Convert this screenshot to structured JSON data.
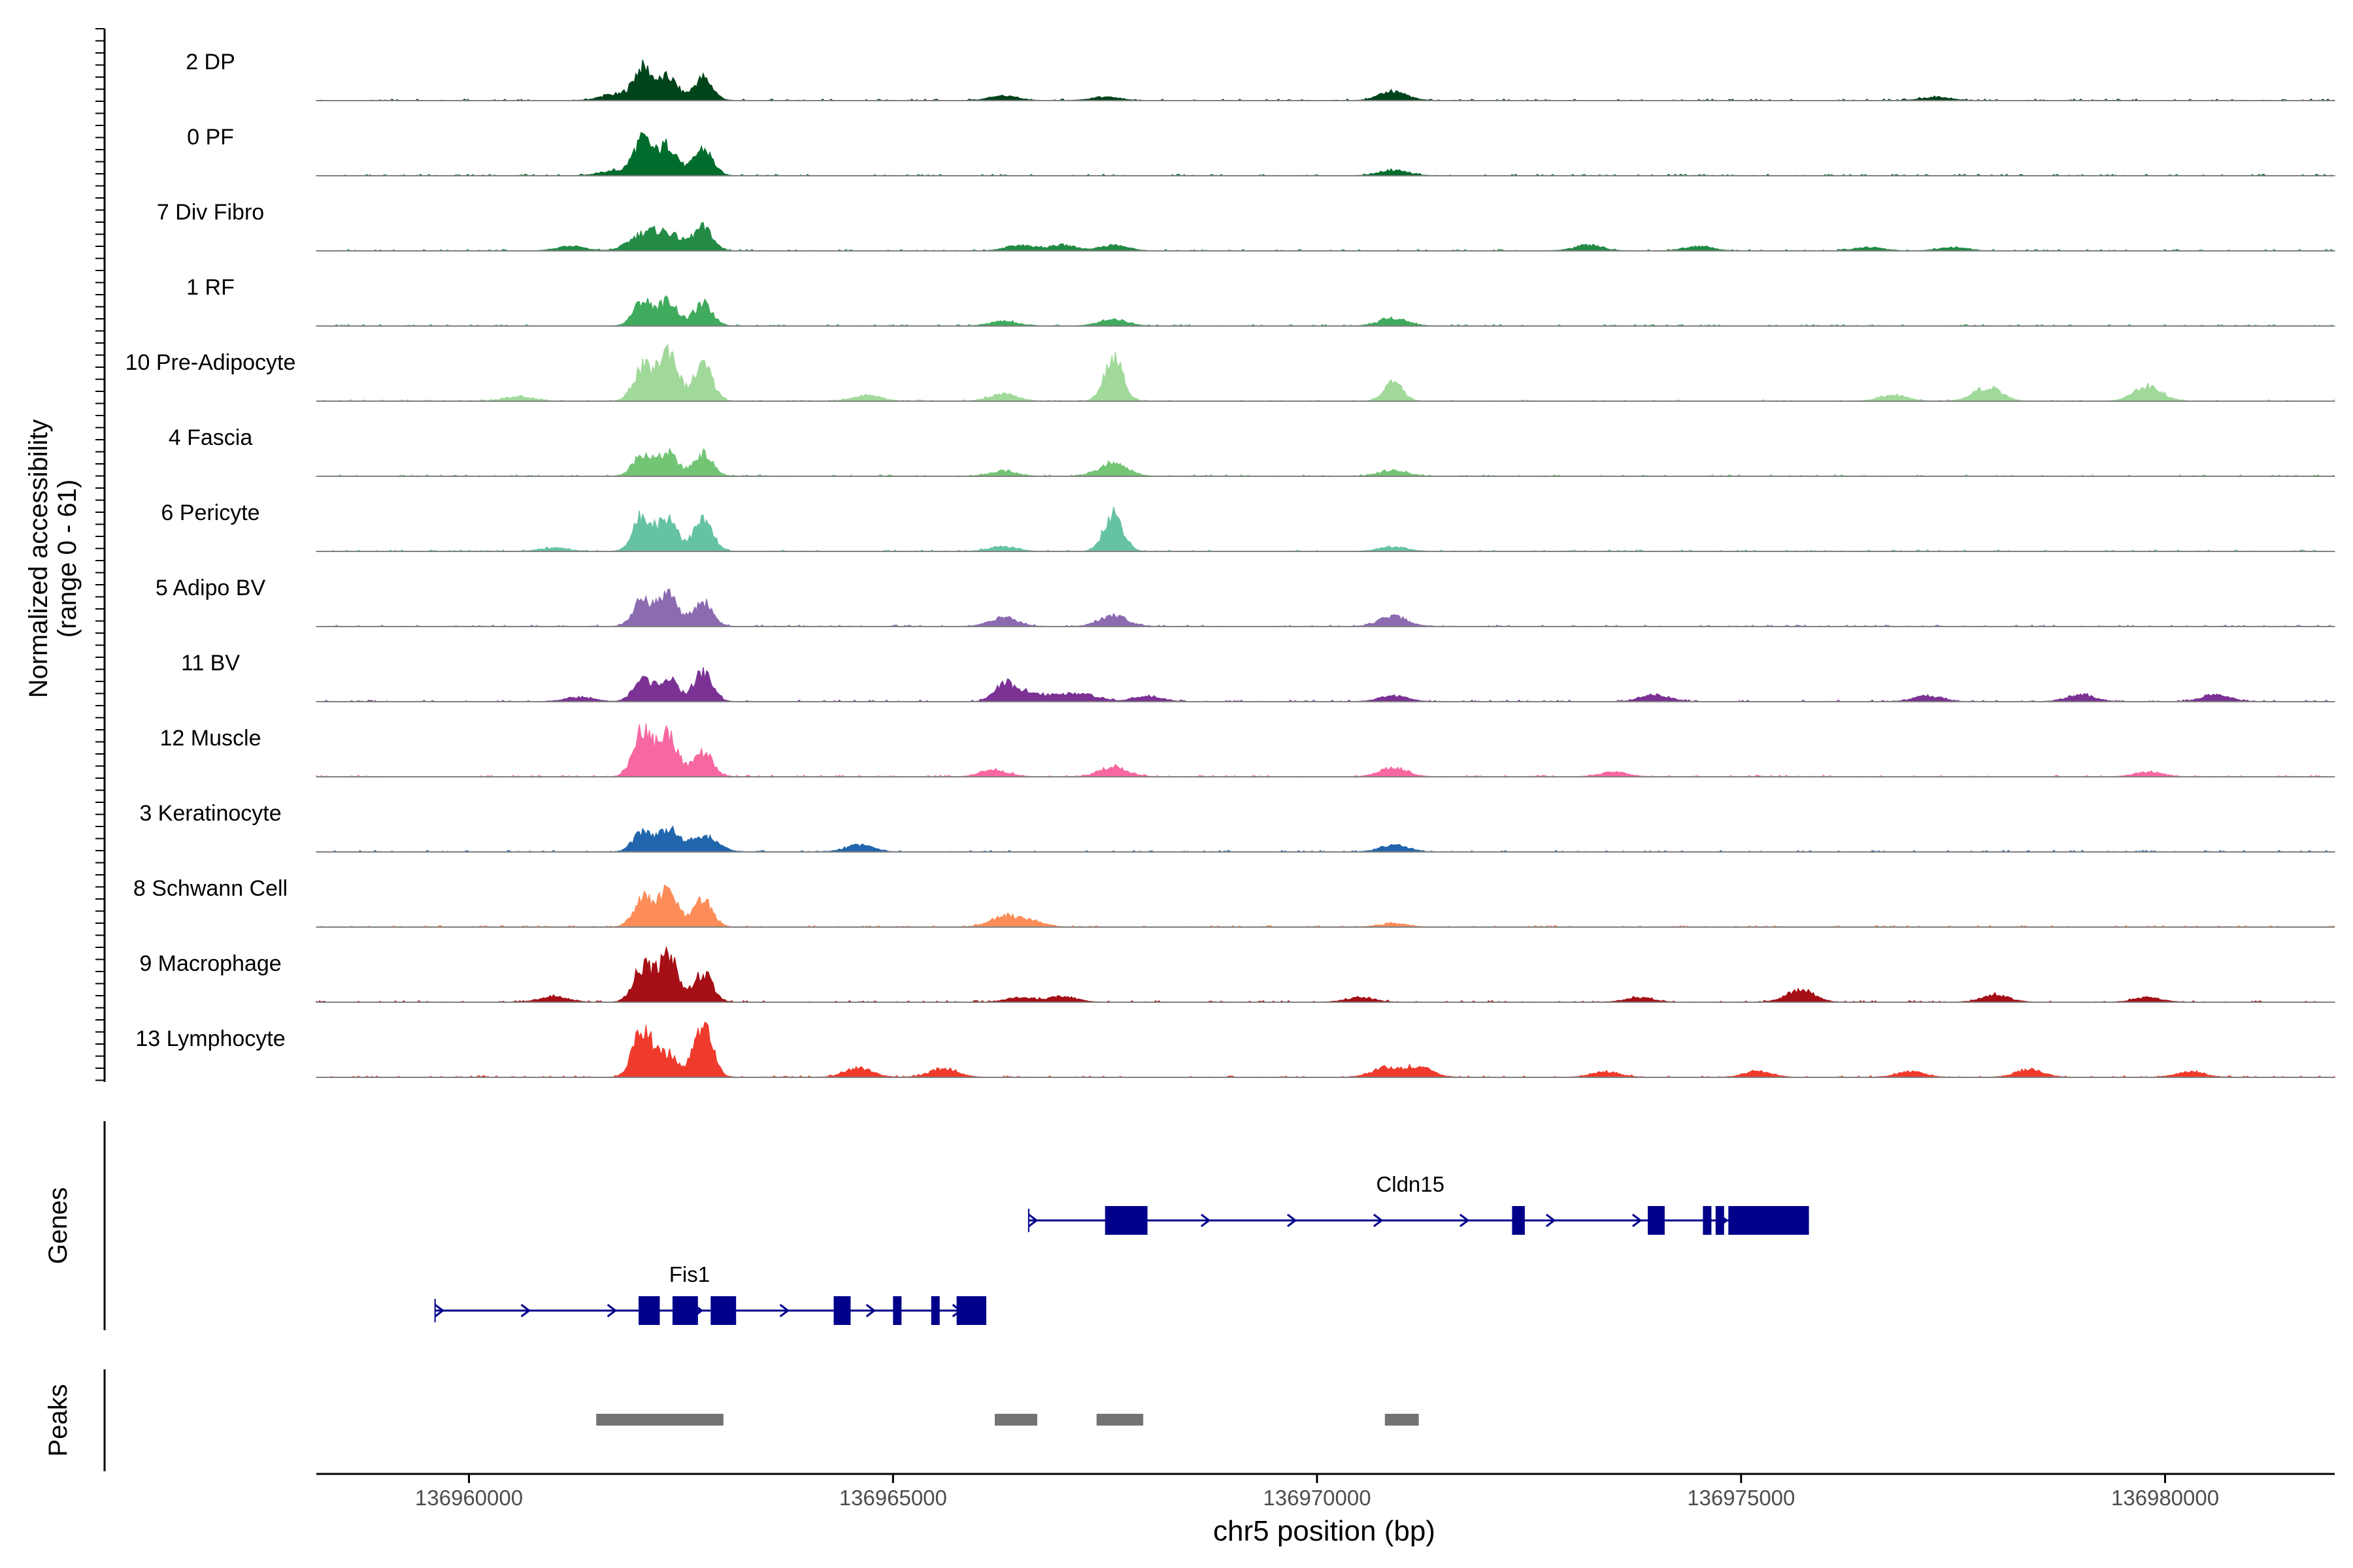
{
  "chart_data": {
    "type": "area",
    "title": "",
    "ylabel": "Normalized accessibility\n(range 0 - 61)",
    "ylabel_lines": [
      "Normalized accessibility",
      "(range 0 - 61)"
    ],
    "y_range": [
      0,
      61
    ],
    "xlabel": "chr5 position (bp)",
    "xlim": [
      136958200,
      136982000
    ],
    "x_ticks": [
      136960000,
      136965000,
      136970000,
      136975000,
      136980000
    ],
    "x_tick_labels": [
      "136960000",
      "136965000",
      "136970000",
      "136975000",
      "136980000"
    ],
    "panel_labels": {
      "genes": "Genes",
      "peaks": "Peaks"
    },
    "tracks": [
      {
        "name": "2 DP",
        "color": "#00441b",
        "peaks": [
          [
            136962050,
            29
          ],
          [
            136962350,
            20
          ],
          [
            136962760,
            20
          ],
          [
            136961700,
            5
          ],
          [
            136966300,
            4
          ],
          [
            136967500,
            3
          ],
          [
            136970900,
            8
          ],
          [
            136977300,
            3
          ]
        ]
      },
      {
        "name": "0 PF",
        "color": "#006d2c",
        "peaks": [
          [
            136962050,
            32
          ],
          [
            136962350,
            27
          ],
          [
            136962760,
            24
          ],
          [
            136961700,
            4
          ],
          [
            136970900,
            5
          ]
        ]
      },
      {
        "name": "7 Div Fibro",
        "color": "#238b45",
        "peaks": [
          [
            136962050,
            14
          ],
          [
            136962350,
            14
          ],
          [
            136962760,
            20
          ],
          [
            136961200,
            4
          ],
          [
            136966500,
            5
          ],
          [
            136967000,
            5
          ],
          [
            136967600,
            5
          ],
          [
            136973200,
            5
          ],
          [
            136974500,
            4
          ],
          [
            136976500,
            3
          ],
          [
            136977500,
            3
          ]
        ]
      },
      {
        "name": "1 RF",
        "color": "#41ab5d",
        "peaks": [
          [
            136962050,
            22
          ],
          [
            136962350,
            22
          ],
          [
            136962760,
            19
          ],
          [
            136966300,
            4
          ],
          [
            136967600,
            6
          ],
          [
            136970900,
            7
          ]
        ]
      },
      {
        "name": "10 Pre-Adipocyte",
        "color": "#a1d99b",
        "peaks": [
          [
            136962050,
            30
          ],
          [
            136962350,
            46
          ],
          [
            136962760,
            32
          ],
          [
            136967600,
            38
          ],
          [
            136970900,
            16
          ],
          [
            136966300,
            6
          ],
          [
            136964700,
            5
          ],
          [
            136977900,
            12
          ],
          [
            136979800,
            13
          ],
          [
            136976800,
            5
          ],
          [
            136960600,
            4
          ]
        ]
      },
      {
        "name": "4 Fascia",
        "color": "#74c476",
        "peaks": [
          [
            136962050,
            20
          ],
          [
            136962350,
            20
          ],
          [
            136962760,
            20
          ],
          [
            136967600,
            12
          ],
          [
            136966300,
            4
          ],
          [
            136970900,
            5
          ]
        ]
      },
      {
        "name": "6 Pericyte",
        "color": "#66c2a5",
        "peaks": [
          [
            136962050,
            32
          ],
          [
            136962350,
            30
          ],
          [
            136962760,
            28
          ],
          [
            136967600,
            33
          ],
          [
            136966300,
            4
          ],
          [
            136970900,
            4
          ],
          [
            136961000,
            3
          ]
        ]
      },
      {
        "name": "5 Adipo BV",
        "color": "#8c6bb1",
        "peaks": [
          [
            136962050,
            24
          ],
          [
            136962350,
            30
          ],
          [
            136962760,
            22
          ],
          [
            136966300,
            8
          ],
          [
            136967600,
            10
          ],
          [
            136970900,
            9
          ]
        ]
      },
      {
        "name": "11 BV",
        "color": "#7b3294",
        "peaks": [
          [
            136962050,
            20
          ],
          [
            136962350,
            20
          ],
          [
            136962760,
            26
          ],
          [
            136966300,
            16
          ],
          [
            136966600,
            8
          ],
          [
            136967000,
            6
          ],
          [
            136967300,
            5
          ],
          [
            136968000,
            5
          ],
          [
            136970900,
            5
          ],
          [
            136974000,
            6
          ],
          [
            136977200,
            5
          ],
          [
            136979000,
            6
          ],
          [
            136980600,
            6
          ],
          [
            136961300,
            4
          ]
        ]
      },
      {
        "name": "12 Muscle",
        "color": "#f768a1",
        "peaks": [
          [
            136962050,
            42
          ],
          [
            136962350,
            38
          ],
          [
            136962760,
            22
          ],
          [
            136966200,
            6
          ],
          [
            136967600,
            9
          ],
          [
            136970900,
            8
          ],
          [
            136973500,
            4
          ],
          [
            136979800,
            4
          ]
        ]
      },
      {
        "name": "3 Keratinocyte",
        "color": "#2166ac",
        "peaks": [
          [
            136962050,
            18
          ],
          [
            136962350,
            20
          ],
          [
            136962760,
            14
          ],
          [
            136964600,
            6
          ],
          [
            136970900,
            6
          ]
        ]
      },
      {
        "name": "8 Schwann Cell",
        "color": "#fc8d59",
        "peaks": [
          [
            136962050,
            26
          ],
          [
            136962350,
            32
          ],
          [
            136962760,
            24
          ],
          [
            136966300,
            9
          ],
          [
            136966600,
            6
          ],
          [
            136970900,
            3
          ]
        ]
      },
      {
        "name": "9 Macrophage",
        "color": "#a50f15",
        "peaks": [
          [
            136962050,
            32
          ],
          [
            136962350,
            44
          ],
          [
            136962760,
            25
          ],
          [
            136961000,
            5
          ],
          [
            136966500,
            4
          ],
          [
            136967000,
            5
          ],
          [
            136970500,
            4
          ],
          [
            136973800,
            4
          ],
          [
            136975700,
            11
          ],
          [
            136978000,
            6
          ],
          [
            136979800,
            4
          ]
        ]
      },
      {
        "name": "13 Lymphocyte",
        "color": "#ef3b2c",
        "peaks": [
          [
            136962050,
            45
          ],
          [
            136962350,
            20
          ],
          [
            136962760,
            44
          ],
          [
            136964600,
            8
          ],
          [
            136965600,
            8
          ],
          [
            136970800,
            8
          ],
          [
            136971200,
            9
          ],
          [
            136973400,
            5
          ],
          [
            136975200,
            5
          ],
          [
            136977000,
            5
          ],
          [
            136978400,
            7
          ],
          [
            136980300,
            5
          ]
        ]
      }
    ],
    "genes": [
      {
        "name": "Fis1",
        "strand": "+",
        "start": 136959600,
        "end": 136966100,
        "exons": [
          [
            136962000,
            136962250
          ],
          [
            136962400,
            136962700
          ],
          [
            136962850,
            136963150
          ],
          [
            136964300,
            136964500
          ],
          [
            136965000,
            136965100
          ],
          [
            136965450,
            136965550
          ],
          [
            136965750,
            136966100
          ]
        ]
      },
      {
        "name": "Cldn15",
        "strand": "+",
        "start": 136966600,
        "end": 136975800,
        "exons": [
          [
            136967500,
            136968000
          ],
          [
            136972300,
            136972450
          ],
          [
            136973900,
            136974100
          ],
          [
            136974550,
            136974650
          ],
          [
            136974700,
            136974800
          ],
          [
            136974850,
            136975800
          ]
        ]
      }
    ],
    "peak_regions": [
      [
        136961500,
        136963000
      ],
      [
        136966200,
        136966700
      ],
      [
        136967400,
        136967950
      ],
      [
        136970800,
        136971200
      ]
    ]
  }
}
